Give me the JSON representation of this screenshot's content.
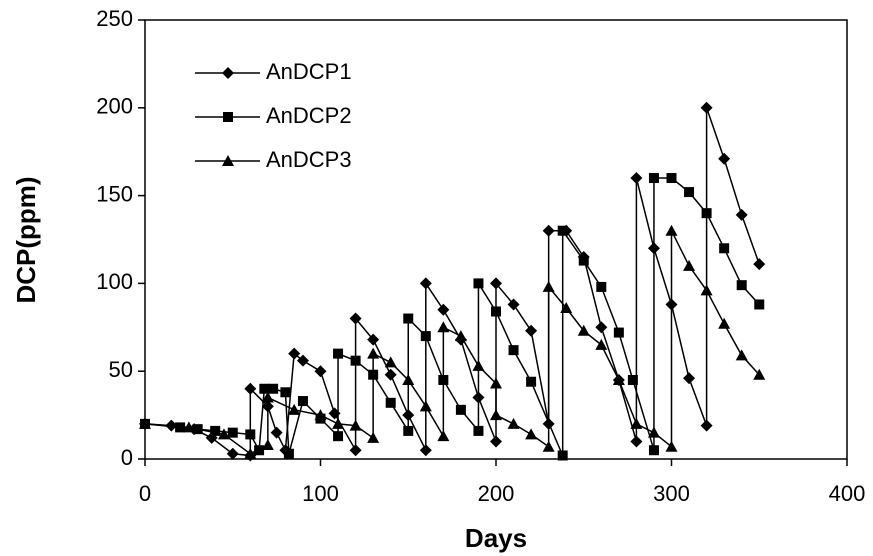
{
  "chart_data": {
    "type": "line",
    "x_label": "Days",
    "y_label": "DCP(ppm)",
    "xlim": [
      0,
      400
    ],
    "xticks": [
      0,
      100,
      200,
      300,
      400
    ],
    "ylim": [
      0,
      250
    ],
    "yticks": [
      0,
      50,
      100,
      150,
      200,
      250
    ],
    "grid": false,
    "legend_position": "upper left",
    "series": [
      {
        "name": "AnDCP1",
        "color": "#000000",
        "marker": "diamond",
        "x": [
          0,
          15,
          28,
          38,
          50,
          60,
          60,
          70,
          75,
          80,
          85,
          90,
          100,
          108,
          120,
          120,
          130,
          140,
          150,
          160,
          160,
          170,
          180,
          190,
          200,
          200,
          210,
          220,
          230,
          230,
          240,
          250,
          260,
          270,
          280,
          280,
          290,
          300,
          310,
          320,
          320,
          330,
          340,
          350
        ],
        "values": [
          20,
          19,
          17,
          12,
          3,
          2,
          40,
          30,
          15,
          5,
          60,
          56,
          50,
          26,
          5,
          80,
          68,
          48,
          25,
          5,
          100,
          85,
          68,
          35,
          10,
          100,
          88,
          73,
          20,
          130,
          130,
          115,
          75,
          45,
          10,
          160,
          120,
          88,
          46,
          19,
          200,
          171,
          139,
          111
        ]
      },
      {
        "name": "AnDCP2",
        "color": "#000000",
        "marker": "square",
        "x": [
          0,
          20,
          30,
          40,
          50,
          60,
          65,
          68,
          73,
          80,
          82,
          90,
          100,
          110,
          110,
          120,
          130,
          140,
          150,
          150,
          160,
          170,
          180,
          190,
          190,
          200,
          210,
          220,
          238,
          238,
          250,
          260,
          270,
          278,
          290,
          290,
          300,
          310,
          320,
          330,
          340,
          350
        ],
        "values": [
          20,
          18,
          17,
          16,
          15,
          14,
          5,
          40,
          40,
          38,
          3,
          33,
          23,
          13,
          60,
          56,
          48,
          32,
          16,
          80,
          70,
          45,
          28,
          16,
          100,
          84,
          62,
          44,
          2,
          130,
          113,
          98,
          72,
          45,
          5,
          160,
          160,
          152,
          140,
          120,
          99,
          88
        ]
      },
      {
        "name": "AnDCP3",
        "color": "#000000",
        "marker": "triangle",
        "x": [
          0,
          25,
          45,
          60,
          70,
          70,
          85,
          100,
          110,
          120,
          130,
          130,
          140,
          150,
          160,
          170,
          170,
          180,
          190,
          200,
          200,
          210,
          220,
          230,
          230,
          240,
          250,
          260,
          270,
          280,
          290,
          300,
          300,
          310,
          320,
          330,
          340,
          350
        ],
        "values": [
          20,
          18,
          14,
          3,
          8,
          35,
          28,
          25,
          20,
          19,
          12,
          60,
          55,
          45,
          30,
          13,
          75,
          70,
          53,
          43,
          25,
          20,
          14,
          7,
          98,
          86,
          73,
          65,
          45,
          20,
          15,
          7,
          130,
          110,
          96,
          77,
          59,
          48
        ]
      }
    ]
  }
}
